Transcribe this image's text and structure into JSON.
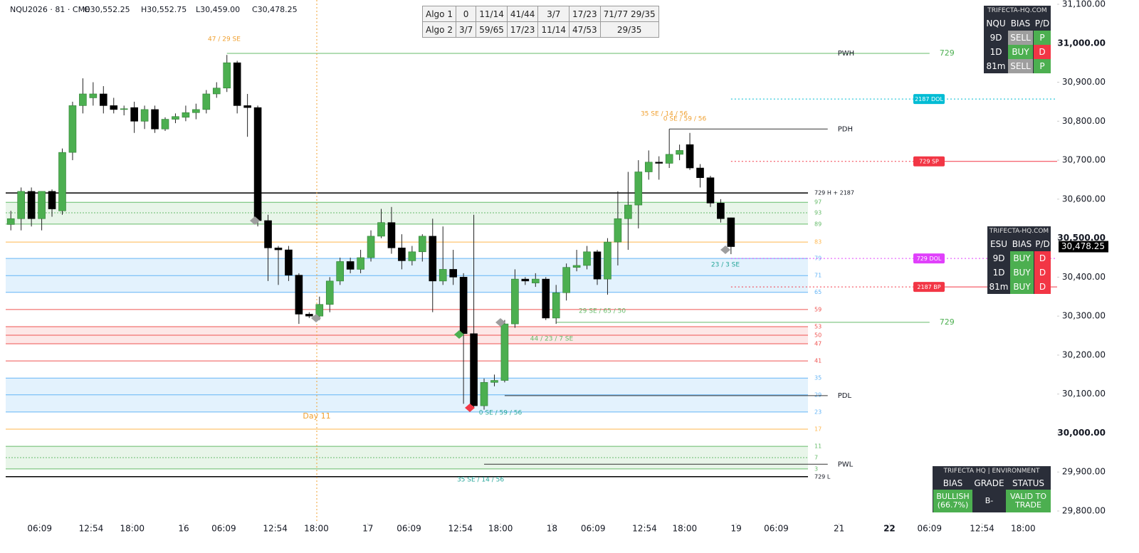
{
  "header": {
    "symbol": "NQU2026 · 81 · CME",
    "ohlc_labels": [
      "O30,552.25",
      "H30,552.75",
      "L30,459.00",
      "C30,478.25"
    ]
  },
  "chart_data": {
    "type": "candlestick",
    "open": [
      30535,
      30550,
      30620,
      30550,
      30620,
      30570,
      30720,
      30840,
      30860,
      30870,
      30840,
      30830,
      30835,
      30800,
      30830,
      30780,
      30805,
      30810,
      30822,
      30830,
      30870,
      30885,
      30950,
      30840,
      30835,
      30545,
      30475,
      30470,
      30405,
      30305,
      30300,
      30330,
      30390,
      30440,
      30420,
      30450,
      30505,
      30540,
      30475,
      30442,
      30465,
      30505,
      30390,
      30420,
      30400,
      30255,
      30070,
      30130,
      30135,
      30280,
      30395,
      30385,
      30395,
      30295,
      30360,
      30425,
      30430,
      30465,
      30395,
      30490,
      30550,
      30585,
      30670,
      30695,
      30692,
      30715,
      30740,
      30680,
      30655,
      30590,
      30552.25
    ],
    "high": [
      30570,
      30630,
      30630,
      30620,
      30625,
      30730,
      30850,
      30910,
      30900,
      30890,
      30860,
      30840,
      30850,
      30840,
      30840,
      30810,
      30820,
      30840,
      30845,
      30880,
      30900,
      30970,
      30955,
      30870,
      30840,
      30560,
      30480,
      30480,
      30410,
      30310,
      30350,
      30400,
      30450,
      30450,
      30470,
      30520,
      30575,
      30580,
      30510,
      30480,
      30510,
      30550,
      30530,
      30470,
      30410,
      30560,
      30140,
      30150,
      30290,
      30420,
      30400,
      30410,
      30400,
      30380,
      30435,
      30470,
      30480,
      30470,
      30500,
      30620,
      30670,
      30700,
      30725,
      30710,
      30780,
      30740,
      30770,
      30690,
      30660,
      30600,
      30552.75
    ],
    "low": [
      30520,
      30520,
      30530,
      30520,
      30555,
      30560,
      30700,
      30820,
      30840,
      30820,
      30820,
      30815,
      30770,
      30780,
      30770,
      30775,
      30795,
      30800,
      30805,
      30820,
      30860,
      30875,
      30820,
      30760,
      30530,
      30390,
      30380,
      30390,
      30280,
      30295,
      30290,
      30310,
      30380,
      30410,
      30410,
      30440,
      30500,
      30460,
      30420,
      30430,
      30440,
      30310,
      30380,
      30380,
      30075,
      30065,
      30060,
      30120,
      30130,
      30270,
      30380,
      30375,
      30290,
      30280,
      30340,
      30415,
      30420,
      30380,
      30355,
      30430,
      30470,
      30525,
      30650,
      30650,
      30680,
      30700,
      30675,
      30630,
      30580,
      30540,
      30459
    ],
    "close": [
      30550,
      30620,
      30550,
      30620,
      30575,
      30720,
      30840,
      30870,
      30870,
      30840,
      30830,
      30832,
      30800,
      30830,
      30780,
      30805,
      30812,
      30822,
      30830,
      30870,
      30885,
      30950,
      30840,
      30835,
      30545,
      30475,
      30470,
      30405,
      30305,
      30300,
      30330,
      30390,
      30440,
      30420,
      30450,
      30505,
      30540,
      30475,
      30442,
      30465,
      30505,
      30390,
      30420,
      30400,
      30255,
      30070,
      30130,
      30135,
      30280,
      30395,
      30390,
      30395,
      30295,
      30360,
      30425,
      30430,
      30465,
      30395,
      30490,
      30550,
      30585,
      30670,
      30695,
      30692,
      30715,
      30725,
      30680,
      30655,
      30590,
      30550,
      30478.25
    ],
    "up_color": "#4caf50",
    "down_color": "#000000",
    "xlim": [
      -0.5,
      101.7
    ],
    "xticks": [
      {
        "value": 2.8,
        "label": "06:09"
      },
      {
        "value": 7.8,
        "label": "12:54"
      },
      {
        "value": 11.8,
        "label": "18:00"
      },
      {
        "value": 16.8,
        "label": "16"
      },
      {
        "value": 20.7,
        "label": "06:09"
      },
      {
        "value": 25.7,
        "label": "12:54"
      },
      {
        "value": 29.7,
        "label": "18:00"
      },
      {
        "value": 34.7,
        "label": "17"
      },
      {
        "value": 38.7,
        "label": "06:09"
      },
      {
        "value": 43.7,
        "label": "12:54"
      },
      {
        "value": 47.6,
        "label": "18:00"
      },
      {
        "value": 52.6,
        "label": "18"
      },
      {
        "value": 56.6,
        "label": "06:09"
      },
      {
        "value": 61.6,
        "label": "12:54"
      },
      {
        "value": 65.5,
        "label": "18:00"
      },
      {
        "value": 70.5,
        "label": "19"
      },
      {
        "value": 74.4,
        "label": "06:09"
      },
      {
        "value": 80.5,
        "label": "21"
      },
      {
        "value": 85.4,
        "label": "22"
      },
      {
        "value": 89.3,
        "label": "06:09"
      },
      {
        "value": 94.4,
        "label": "12:54"
      },
      {
        "value": 98.4,
        "label": "18:00"
      }
    ],
    "ylim": [
      29800,
      31100
    ],
    "yticks": [
      {
        "value": 31100,
        "label": "31,100.00"
      },
      {
        "value": 31000,
        "label": "31,000.00"
      },
      {
        "value": 30900,
        "label": "30,900.00"
      },
      {
        "value": 30800,
        "label": "30,800.00"
      },
      {
        "value": 30700,
        "label": "30,700.00"
      },
      {
        "value": 30600,
        "label": "30,600.00"
      },
      {
        "value": 30500,
        "label": "30,500.00"
      },
      {
        "value": 30400,
        "label": "30,400.00"
      },
      {
        "value": 30300,
        "label": "30,300.00"
      },
      {
        "value": 30200,
        "label": "30,200.00"
      },
      {
        "value": 30100,
        "label": "30,100.00"
      },
      {
        "value": 30000,
        "label": "30,000.00"
      },
      {
        "value": 29900,
        "label": "29,900.00"
      },
      {
        "value": 29800,
        "label": "29,800.00"
      }
    ],
    "grid": false,
    "last_price": {
      "value": 30478.25,
      "label": "30,478.25"
    },
    "levels": [
      {
        "label": "729 H + 2187",
        "value": 30616,
        "color": "#000000",
        "style": "solid"
      },
      {
        "label": "97",
        "value": 30592,
        "color": "#66bb6a",
        "style": "solid",
        "fill": "#e8f5e9"
      },
      {
        "label": "93",
        "value": 30565,
        "color": "#66bb6a",
        "style": "dotted",
        "fill": "#e8f5e9"
      },
      {
        "label": "89",
        "value": 30536,
        "color": "#66bb6a",
        "style": "solid"
      },
      {
        "label": "83",
        "value": 30490,
        "color": "#ffb74d",
        "style": "solid"
      },
      {
        "label": "79",
        "value": 30448,
        "color": "#64b5f6",
        "style": "solid",
        "fill": "#e3f2fd"
      },
      {
        "label": "71",
        "value": 30404,
        "color": "#64b5f6",
        "style": "solid",
        "fill": "#e3f2fd"
      },
      {
        "label": "65",
        "value": 30361,
        "color": "#64b5f6",
        "style": "solid"
      },
      {
        "label": "59",
        "value": 30317,
        "color": "#ef5350",
        "style": "solid"
      },
      {
        "label": "53",
        "value": 30273,
        "color": "#ef5350",
        "style": "solid",
        "fill": "#fde7e7"
      },
      {
        "label": "50",
        "value": 30251,
        "color": "#ef5350",
        "style": "solid",
        "fill": "#fde7e7"
      },
      {
        "label": "47",
        "value": 30229,
        "color": "#ef5350",
        "style": "solid"
      },
      {
        "label": "41",
        "value": 30185,
        "color": "#ef5350",
        "style": "solid"
      },
      {
        "label": "35",
        "value": 30141,
        "color": "#64b5f6",
        "style": "solid",
        "fill": "#e3f2fd"
      },
      {
        "label": "29",
        "value": 30098,
        "color": "#64b5f6",
        "style": "solid",
        "fill": "#e3f2fd"
      },
      {
        "label": "23",
        "value": 30054,
        "color": "#64b5f6",
        "style": "solid"
      },
      {
        "label": "17",
        "value": 30010,
        "color": "#ffb74d",
        "style": "solid"
      },
      {
        "label": "11",
        "value": 29966,
        "color": "#66bb6a",
        "style": "solid",
        "fill": "#e8f5e9"
      },
      {
        "label": "7",
        "value": 29937,
        "color": "#66bb6a",
        "style": "dotted",
        "fill": "#e8f5e9"
      },
      {
        "label": "3",
        "value": 29908,
        "color": "#66bb6a",
        "style": "solid"
      },
      {
        "label": "729 L",
        "value": 29888,
        "color": "#000000",
        "style": "solid"
      }
    ],
    "swing_lines": [
      {
        "label": "PWH",
        "value": 30974,
        "color": "#66bb6a",
        "x_from": 21,
        "x_to": 89.3,
        "tag": "729"
      },
      {
        "label": "PDH",
        "value": 30780,
        "color": "#333333",
        "x_from": 64,
        "x_to": 79.4
      },
      {
        "value": 30284,
        "color": "#66bb6a",
        "x_from": 53,
        "x_to": 89.3,
        "tag": "729"
      },
      {
        "label": "PDL",
        "value": 30096,
        "color": "#333333",
        "x_from": 48,
        "x_to": 79.4
      },
      {
        "label": "PWL",
        "value": 29920,
        "color": "#333333",
        "x_from": 46,
        "x_to": 79.4
      }
    ],
    "key_levels": [
      {
        "label": "2187 DOL",
        "value": 30857,
        "color": "#00bcd4",
        "solid_after": false
      },
      {
        "label": "729 SP",
        "value": 30697,
        "color": "#f23645",
        "solid_after": true
      },
      {
        "label": "729 DOL",
        "value": 30448,
        "color": "#e040fb",
        "solid_after": false
      },
      {
        "label": "2187 BP",
        "value": 30375,
        "color": "#f23645",
        "solid_after": true
      }
    ],
    "annotations": [
      "47 / 29 SE",
      "35 SE / 14 / 56",
      "0 SE / 59 / 56",
      "23 / 3 SE",
      "29 SE / 65 / 50",
      "44 / 23 / 7 SE",
      "0 SE / 59 / 56",
      "35 SE / 14 / 56",
      "Day 11"
    ]
  },
  "algo_table": {
    "rows": [
      [
        "Algo 1",
        "0",
        "11/14",
        "41/44",
        "3/7",
        "17/23",
        "71/77 29/35"
      ],
      [
        "Algo 2",
        "3/7",
        "59/65",
        "17/23",
        "11/14",
        "47/53",
        "29/35"
      ]
    ]
  },
  "cell_colors": {
    "SELL": "#9e9e9e",
    "BUY": "#4caf50",
    "P": "#4caf50",
    "D": "#f23645"
  },
  "nq_panel": {
    "title": "TRIFECTA-HQ.COM",
    "header": [
      "NQU",
      "BIAS",
      "P/D"
    ],
    "rows": [
      [
        "9D",
        "SELL",
        "P"
      ],
      [
        "1D",
        "BUY",
        "D"
      ],
      [
        "81m",
        "SELL",
        "P"
      ]
    ]
  },
  "es_panel": {
    "title": "TRIFECTA-HQ.COM",
    "header": [
      "ESU",
      "BIAS",
      "P/D"
    ],
    "rows": [
      [
        "9D",
        "BUY",
        "D"
      ],
      [
        "1D",
        "BUY",
        "D"
      ],
      [
        "81m",
        "BUY",
        "D"
      ]
    ]
  },
  "env_panel": {
    "title": "TRIFECTA HQ | ENVIRONMENT",
    "header": [
      "BIAS",
      "GRADE",
      "STATUS"
    ],
    "values": [
      "BULLISH (66.7%)",
      "B-",
      "VALID TO TRADE"
    ],
    "value_colors": [
      "#4caf50",
      "#2a2e39",
      "#4caf50"
    ]
  }
}
